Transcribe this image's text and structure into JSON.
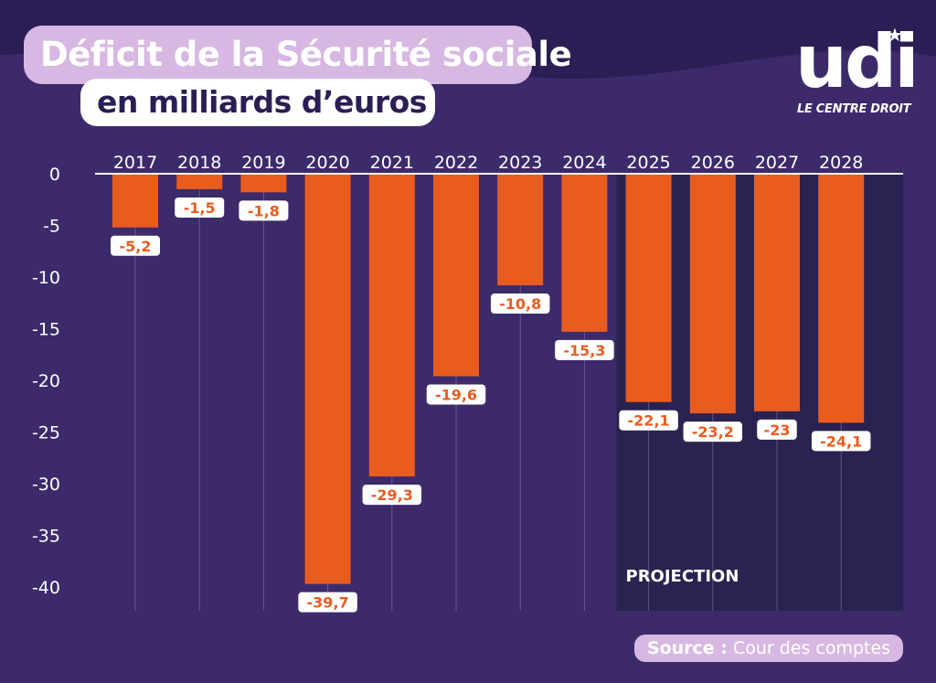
{
  "title": {
    "line1": "Déficit de la Sécurité sociale",
    "line2": "en milliards d’euros"
  },
  "logo": {
    "word": "udi",
    "tagline": "LE CENTRE DROIT"
  },
  "source": {
    "label": "Source :",
    "text": "Cour des comptes"
  },
  "colors": {
    "background": "#3d2a6b",
    "background_top": "#2b1e55",
    "bar": "#e85c20",
    "projection_panel": "#2a2250",
    "label_bg": "#ffffff",
    "label_text": "#e85c20",
    "axis_text": "#ffffff",
    "title_pill": "#d7b8e2"
  },
  "chart_data": {
    "type": "bar",
    "categories": [
      "2017",
      "2018",
      "2019",
      "2020",
      "2021",
      "2022",
      "2023",
      "2024",
      "2025",
      "2026",
      "2027",
      "2028"
    ],
    "values": [
      -5.2,
      -1.5,
      -1.8,
      -39.7,
      -29.3,
      -19.6,
      -10.8,
      -15.3,
      -22.1,
      -23.2,
      -23,
      -24.1
    ],
    "value_labels": [
      "-5,2",
      "-1,5",
      "-1,8",
      "-39,7",
      "-29,3",
      "-19,6",
      "-10,8",
      "-15,3",
      "-22,1",
      "-23,2",
      "-23",
      "-24,1"
    ],
    "yticks": [
      0,
      -5,
      -10,
      -15,
      -20,
      -25,
      -30,
      -35,
      -40
    ],
    "ylim": [
      -42,
      0
    ],
    "grid": "vertical",
    "x_axis_position": "top",
    "projection": {
      "label": "PROJECTION",
      "from": "2025",
      "to": "2028"
    }
  }
}
